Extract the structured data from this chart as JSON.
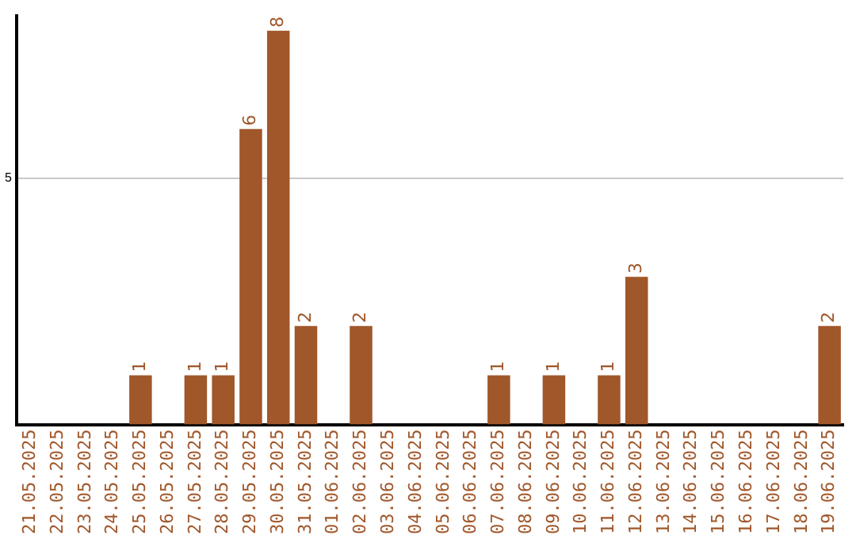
{
  "chart_data": {
    "type": "bar",
    "categories": [
      "21.05.2025",
      "22.05.2025",
      "23.05.2025",
      "24.05.2025",
      "25.05.2025",
      "26.05.2025",
      "27.05.2025",
      "28.05.2025",
      "29.05.2025",
      "30.05.2025",
      "31.05.2025",
      "01.06.2025",
      "02.06.2025",
      "03.06.2025",
      "04.06.2025",
      "05.06.2025",
      "06.06.2025",
      "07.06.2025",
      "08.06.2025",
      "09.06.2025",
      "10.06.2025",
      "11.06.2025",
      "12.06.2025",
      "13.06.2025",
      "14.06.2025",
      "15.06.2025",
      "16.06.2025",
      "17.06.2025",
      "18.06.2025",
      "19.06.2025"
    ],
    "values": [
      0,
      0,
      0,
      0,
      1,
      0,
      1,
      1,
      6,
      8,
      2,
      0,
      2,
      0,
      0,
      0,
      0,
      1,
      0,
      1,
      0,
      1,
      3,
      0,
      0,
      0,
      0,
      0,
      0,
      2
    ],
    "value_labels": [
      null,
      null,
      null,
      null,
      "1",
      null,
      "1",
      "1",
      "6",
      "8",
      "2",
      null,
      "2",
      null,
      null,
      null,
      null,
      "1",
      null,
      "1",
      null,
      "1",
      "3",
      null,
      null,
      null,
      null,
      null,
      null,
      "2"
    ],
    "color": "#a0572a",
    "ylim": [
      0,
      8.3
    ],
    "yticks": [
      5
    ],
    "grid": "y",
    "legend": false
  }
}
